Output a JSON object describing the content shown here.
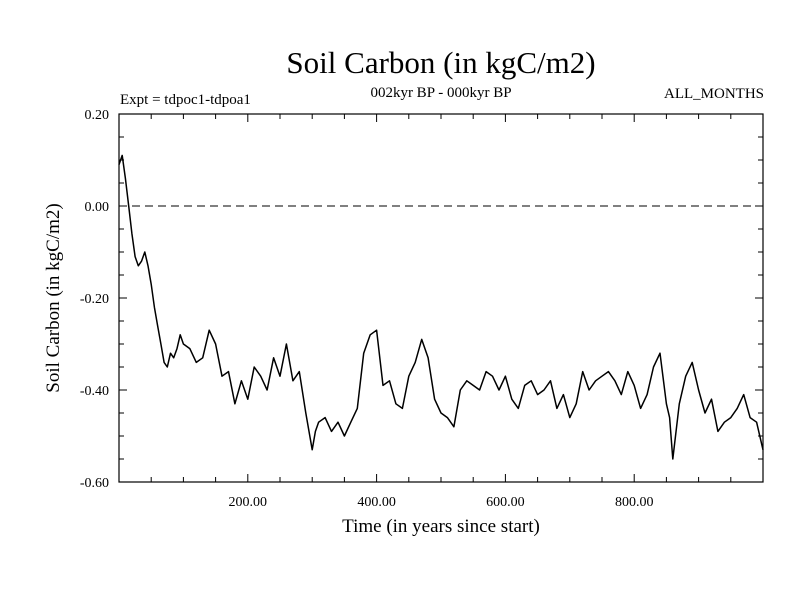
{
  "chart_data": {
    "type": "line",
    "title": "Soil Carbon (in kgC/m2)",
    "subtitle": "002kyr BP - 000kyr BP",
    "left_label": "Expt = tdpoc1-tdpoa1",
    "right_label": "ALL_MONTHS",
    "xlabel": "Time (in years since start)",
    "ylabel": "Soil Carbon (in kgC/m2)",
    "xlim": [
      0,
      1000
    ],
    "ylim": [
      -0.6,
      0.2
    ],
    "x_ticks": [
      200,
      400,
      600,
      800
    ],
    "x_tick_labels": [
      "200.00",
      "400.00",
      "600.00",
      "800.00"
    ],
    "y_ticks": [
      0.2,
      0.0,
      -0.2,
      -0.4,
      -0.6
    ],
    "y_tick_labels": [
      "0.20",
      "0.00",
      "-0.20",
      "-0.40",
      "-0.60"
    ],
    "reference_line": {
      "y": 0.0,
      "style": "dashed"
    },
    "series": [
      {
        "name": "Soil Carbon",
        "color": "#000000",
        "x": [
          0,
          5,
          10,
          15,
          20,
          25,
          30,
          35,
          40,
          45,
          50,
          55,
          60,
          65,
          70,
          75,
          80,
          85,
          90,
          95,
          100,
          110,
          120,
          130,
          140,
          150,
          160,
          170,
          180,
          190,
          200,
          210,
          220,
          230,
          240,
          250,
          260,
          270,
          280,
          290,
          300,
          305,
          310,
          320,
          330,
          340,
          350,
          360,
          370,
          380,
          390,
          400,
          410,
          420,
          430,
          440,
          450,
          460,
          470,
          480,
          490,
          500,
          510,
          520,
          530,
          540,
          550,
          560,
          570,
          580,
          590,
          600,
          610,
          620,
          630,
          640,
          650,
          660,
          670,
          680,
          690,
          700,
          710,
          720,
          730,
          740,
          750,
          760,
          770,
          780,
          790,
          800,
          810,
          820,
          830,
          840,
          850,
          855,
          860,
          870,
          880,
          890,
          900,
          910,
          920,
          930,
          940,
          950,
          960,
          970,
          980,
          990,
          1000
        ],
        "y": [
          0.09,
          0.11,
          0.06,
          0.0,
          -0.06,
          -0.11,
          -0.13,
          -0.12,
          -0.1,
          -0.13,
          -0.17,
          -0.22,
          -0.26,
          -0.3,
          -0.34,
          -0.35,
          -0.32,
          -0.33,
          -0.31,
          -0.28,
          -0.3,
          -0.31,
          -0.34,
          -0.33,
          -0.27,
          -0.3,
          -0.37,
          -0.36,
          -0.43,
          -0.38,
          -0.42,
          -0.35,
          -0.37,
          -0.4,
          -0.33,
          -0.37,
          -0.3,
          -0.38,
          -0.36,
          -0.45,
          -0.53,
          -0.49,
          -0.47,
          -0.46,
          -0.49,
          -0.47,
          -0.5,
          -0.47,
          -0.44,
          -0.32,
          -0.28,
          -0.27,
          -0.39,
          -0.38,
          -0.43,
          -0.44,
          -0.37,
          -0.34,
          -0.29,
          -0.33,
          -0.42,
          -0.45,
          -0.46,
          -0.48,
          -0.4,
          -0.38,
          -0.39,
          -0.4,
          -0.36,
          -0.37,
          -0.4,
          -0.37,
          -0.42,
          -0.44,
          -0.39,
          -0.38,
          -0.41,
          -0.4,
          -0.38,
          -0.44,
          -0.41,
          -0.46,
          -0.43,
          -0.36,
          -0.4,
          -0.38,
          -0.37,
          -0.36,
          -0.38,
          -0.41,
          -0.36,
          -0.39,
          -0.44,
          -0.41,
          -0.35,
          -0.32,
          -0.43,
          -0.46,
          -0.55,
          -0.43,
          -0.37,
          -0.34,
          -0.4,
          -0.45,
          -0.42,
          -0.49,
          -0.47,
          -0.46,
          -0.44,
          -0.41,
          -0.46,
          -0.47,
          -0.53
        ]
      }
    ]
  }
}
